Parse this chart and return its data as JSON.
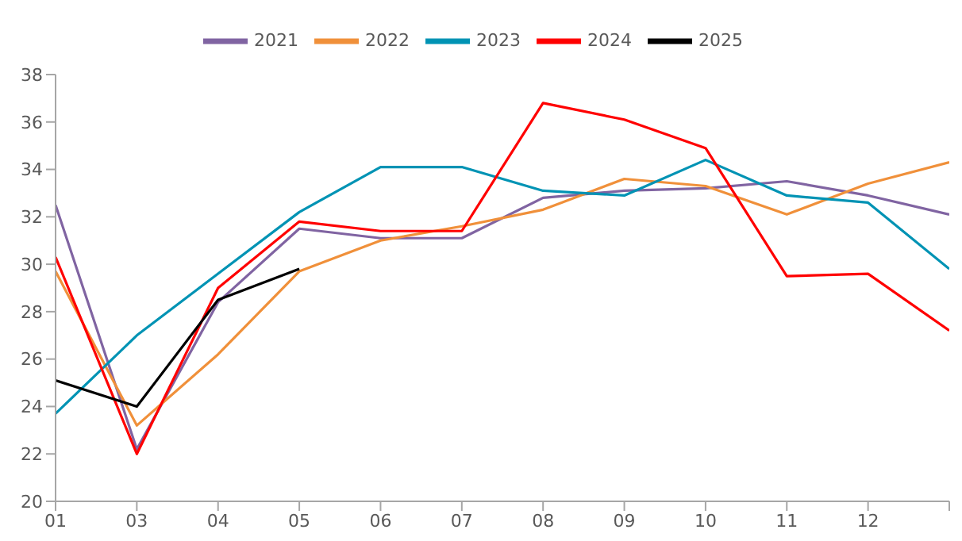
{
  "chart_data": {
    "type": "line",
    "categories": [
      "01",
      "03",
      "04",
      "05",
      "06",
      "07",
      "08",
      "09",
      "10",
      "11",
      "12",
      null
    ],
    "series": [
      {
        "name": "2021",
        "color": "#8064a2",
        "values": [
          32.5,
          22.2,
          28.4,
          31.5,
          31.1,
          31.1,
          32.8,
          33.1,
          33.2,
          33.5,
          32.9,
          32.1
        ]
      },
      {
        "name": "2022",
        "color": "#f0903a",
        "values": [
          29.7,
          23.2,
          26.2,
          29.7,
          31.0,
          31.6,
          32.3,
          33.6,
          33.3,
          32.1,
          33.4,
          34.3
        ]
      },
      {
        "name": "2023",
        "color": "#0093b4",
        "values": [
          23.7,
          27.0,
          29.6,
          32.2,
          34.1,
          34.1,
          33.1,
          32.9,
          34.4,
          32.9,
          32.6,
          29.8
        ]
      },
      {
        "name": "2024",
        "color": "#ff0000",
        "values": [
          30.3,
          22.0,
          29.0,
          31.8,
          31.4,
          31.4,
          36.8,
          36.1,
          34.9,
          29.5,
          29.6,
          27.2
        ]
      },
      {
        "name": "2025",
        "color": "#000000",
        "values": [
          25.1,
          24.0,
          28.5,
          29.8,
          null,
          null,
          null,
          null,
          null,
          null,
          null,
          null
        ]
      }
    ],
    "ylim": [
      20,
      38
    ],
    "yticks": [
      20,
      22,
      24,
      26,
      28,
      30,
      32,
      34,
      36,
      38
    ],
    "grid": false,
    "legend": "top",
    "marker": "none",
    "line_style": "solid"
  }
}
